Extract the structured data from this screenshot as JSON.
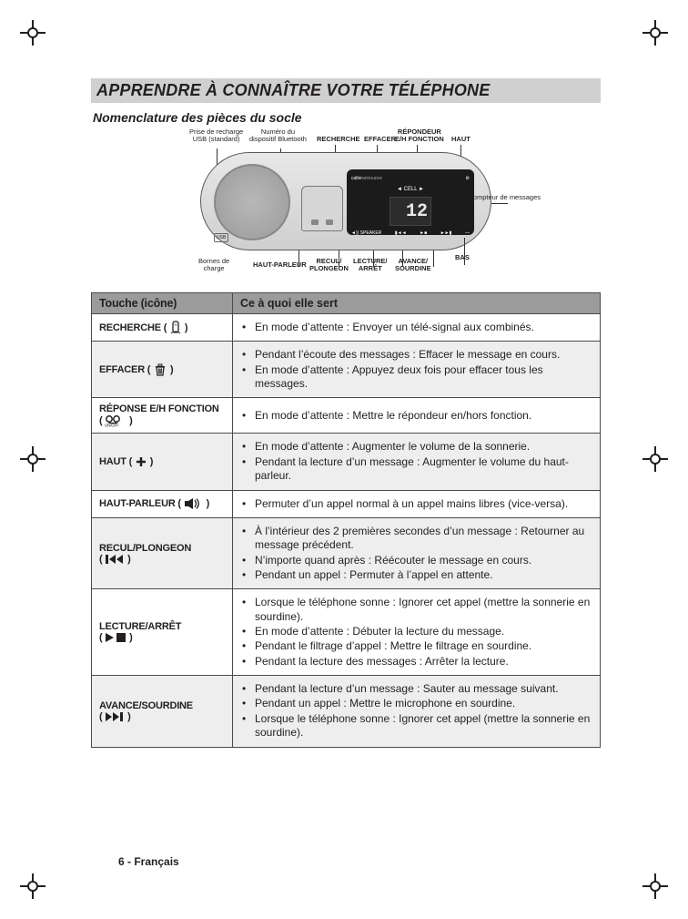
{
  "title": "APPRENDRE À CONNAÎTRE VOTRE TÉLÉPHONE",
  "subtitle": "Nomenclature des pièces du socle",
  "footer": "6 - Français",
  "diagram": {
    "lcd_value": "12",
    "top_callouts": {
      "usb": "Prise de recharge\nUSB (standard)",
      "bt": "Numéro du\ndispositif Bluetooth",
      "recherche": "RECHERCHE",
      "effacer": "EFFACER",
      "repondeur": "RÉPONDEUR\nE/H FONCTION",
      "haut": "HAUT"
    },
    "side_callouts": {
      "compteur": "Compteur\nde\nmessages"
    },
    "bottom_callouts": {
      "bornes": "Bornes de\ncharge",
      "hp": "HAUT-PARLEUR",
      "recul": "RECUL/\nPLONGEON",
      "lecture": "LECTURE/\nARRÊT",
      "avance": "AVANCE/\nSOURDINE",
      "bas": "BAS"
    }
  },
  "table": {
    "headers": {
      "key": "Touche (icône)",
      "use": "Ce à quoi elle sert"
    },
    "rows": [
      {
        "key": "RECHERCHE",
        "icon": "handset",
        "items": [
          "En mode d’attente : Envoyer un télé-signal aux combinés."
        ]
      },
      {
        "key": "EFFACER",
        "icon": "trash",
        "items": [
          "Pendant l’écoute des messages : Effacer le message en cours.",
          "En mode d’attente : Appuyez deux fois pour effacer tous les messages."
        ]
      },
      {
        "key": "RÉPONSE E/H FONCTION",
        "icon": "onoff",
        "items": [
          "En mode d’attente : Mettre le répondeur en/hors fonction."
        ]
      },
      {
        "key": "HAUT",
        "icon": "plus",
        "items": [
          "En mode d’attente : Augmenter le volume de la sonnerie.",
          "Pendant la lecture d’un message : Augmenter le volume du haut-parleur."
        ]
      },
      {
        "key": "HAUT-PARLEUR",
        "icon": "speaker",
        "items": [
          "Permuter d’un appel normal à un appel mains libres (vice-versa)."
        ]
      },
      {
        "key": "RECUL/PLONGEON",
        "icon": "rewind",
        "items": [
          "À l’intérieur des 2 premières secondes d’un message : Retourner au message précédent.",
          "N’importe quand après : Réécouter le message en cours.",
          "Pendant un appel : Permuter à l’appel en attente."
        ]
      },
      {
        "key": "LECTURE/ARRÊT",
        "icon": "playstop",
        "items": [
          "Lorsque le téléphone sonne : Ignorer cet appel (mettre la sonnerie en sourdine).",
          "En mode d’attente : Débuter la lecture du message.",
          "Pendant le filtrage d’appel : Mettre le filtrage en sourdine.",
          "Pendant la lecture des messages : Arrêter la lecture."
        ]
      },
      {
        "key": "AVANCE/SOURDINE",
        "icon": "forward",
        "items": [
          "Pendant la lecture d’un message : Sauter au message suivant.",
          "Pendant un appel : Mettre le microphone en sourdine.",
          "Lorsque le téléphone sonne : Ignorer cet appel (mettre la sonnerie en sourdine)."
        ]
      }
    ]
  }
}
